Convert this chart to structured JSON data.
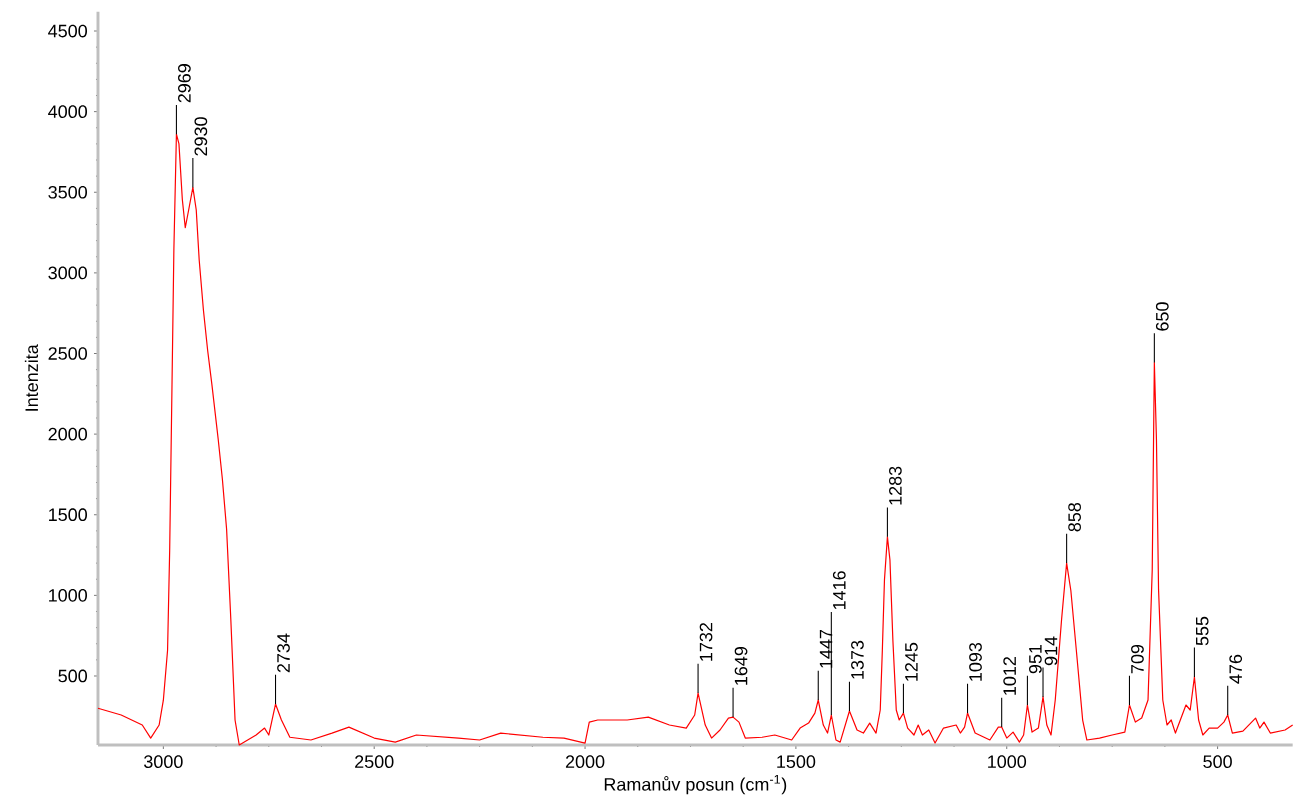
{
  "chart_data": {
    "type": "line",
    "xlabel": "Ramanův posun (cm$^{-1}$)",
    "ylabel": "Intenzita",
    "xlim": [
      3155,
      322
    ],
    "ylim": [
      72,
      4620
    ],
    "xticks": [
      3000,
      2500,
      2000,
      1500,
      1000,
      500
    ],
    "yticks": [
      500,
      1000,
      1500,
      2000,
      2500,
      3000,
      3500,
      4000,
      4500
    ],
    "grid": false,
    "marker": "none",
    "line_style": "solid",
    "x": [
      3155,
      3100,
      3050,
      3030,
      3010,
      3000,
      2990,
      2985,
      2980,
      2975,
      2969,
      2963,
      2955,
      2948,
      2940,
      2930,
      2922,
      2915,
      2905,
      2895,
      2885,
      2870,
      2860,
      2850,
      2840,
      2830,
      2820,
      2800,
      2780,
      2760,
      2750,
      2734,
      2720,
      2700,
      2650,
      2600,
      2560,
      2500,
      2450,
      2400,
      2300,
      2250,
      2200,
      2100,
      2050,
      2000,
      1990,
      1970,
      1900,
      1850,
      1800,
      1760,
      1740,
      1732,
      1715,
      1700,
      1680,
      1660,
      1649,
      1635,
      1620,
      1580,
      1550,
      1510,
      1490,
      1470,
      1455,
      1447,
      1435,
      1425,
      1416,
      1405,
      1395,
      1373,
      1355,
      1340,
      1325,
      1310,
      1300,
      1295,
      1290,
      1283,
      1277,
      1270,
      1262,
      1255,
      1245,
      1235,
      1220,
      1210,
      1200,
      1185,
      1170,
      1150,
      1120,
      1110,
      1100,
      1093,
      1075,
      1040,
      1020,
      1012,
      1000,
      985,
      970,
      960,
      951,
      940,
      925,
      914,
      905,
      895,
      885,
      870,
      858,
      848,
      835,
      820,
      810,
      780,
      750,
      720,
      709,
      695,
      680,
      665,
      655,
      650,
      645,
      640,
      630,
      620,
      610,
      600,
      575,
      565,
      555,
      545,
      535,
      520,
      500,
      485,
      476,
      465,
      440,
      410,
      400,
      390,
      375,
      340,
      322
    ],
    "series": [
      {
        "color": "#ff0000",
        "values": [
          300,
          258,
          196,
          115,
          196,
          350,
          660,
          1280,
          2210,
          3150,
          3860,
          3800,
          3455,
          3280,
          3390,
          3530,
          3390,
          3080,
          2770,
          2520,
          2310,
          1970,
          1720,
          1410,
          850,
          227,
          72,
          103,
          134,
          177,
          134,
          326,
          227,
          120,
          103,
          146,
          183,
          115,
          90,
          134,
          115,
          103,
          146,
          120,
          115,
          84,
          214,
          227,
          227,
          245,
          196,
          177,
          258,
          394,
          196,
          115,
          165,
          239,
          245,
          214,
          115,
          120,
          134,
          103,
          177,
          208,
          270,
          351,
          196,
          146,
          258,
          103,
          90,
          283,
          165,
          146,
          208,
          146,
          289,
          660,
          1096,
          1363,
          1220,
          720,
          289,
          227,
          270,
          177,
          134,
          196,
          134,
          165,
          84,
          177,
          196,
          146,
          183,
          270,
          146,
          103,
          183,
          183,
          115,
          152,
          90,
          134,
          320,
          152,
          177,
          370,
          196,
          134,
          351,
          850,
          1200,
          1030,
          660,
          227,
          103,
          115,
          134,
          152,
          320,
          214,
          239,
          351,
          1158,
          2444,
          1966,
          1034,
          351,
          196,
          227,
          146,
          320,
          289,
          494,
          227,
          134,
          177,
          177,
          214,
          258,
          146,
          158,
          239,
          177,
          214,
          146,
          165,
          196
        ]
      }
    ],
    "annotations": [
      {
        "text": "2969",
        "x": 2969,
        "y": 3860
      },
      {
        "text": "2930",
        "x": 2930,
        "y": 3530
      },
      {
        "text": "2734",
        "x": 2734,
        "y": 326
      },
      {
        "text": "1732",
        "x": 1732,
        "y": 394
      },
      {
        "text": "1649",
        "x": 1649,
        "y": 245
      },
      {
        "text": "1447",
        "x": 1447,
        "y": 351
      },
      {
        "text": "1416",
        "x": 1416,
        "y": 258
      },
      {
        "text": "1373",
        "x": 1373,
        "y": 283
      },
      {
        "text": "1283",
        "x": 1283,
        "y": 1363
      },
      {
        "text": "1245",
        "x": 1245,
        "y": 270
      },
      {
        "text": "1093",
        "x": 1093,
        "y": 270
      },
      {
        "text": "1012",
        "x": 1012,
        "y": 183
      },
      {
        "text": "951",
        "x": 951,
        "y": 320
      },
      {
        "text": "914",
        "x": 914,
        "y": 370
      },
      {
        "text": "858",
        "x": 858,
        "y": 1200
      },
      {
        "text": "709",
        "x": 709,
        "y": 320
      },
      {
        "text": "650",
        "x": 650,
        "y": 2444
      },
      {
        "text": "555",
        "x": 555,
        "y": 494
      },
      {
        "text": "476",
        "x": 476,
        "y": 258
      }
    ]
  }
}
